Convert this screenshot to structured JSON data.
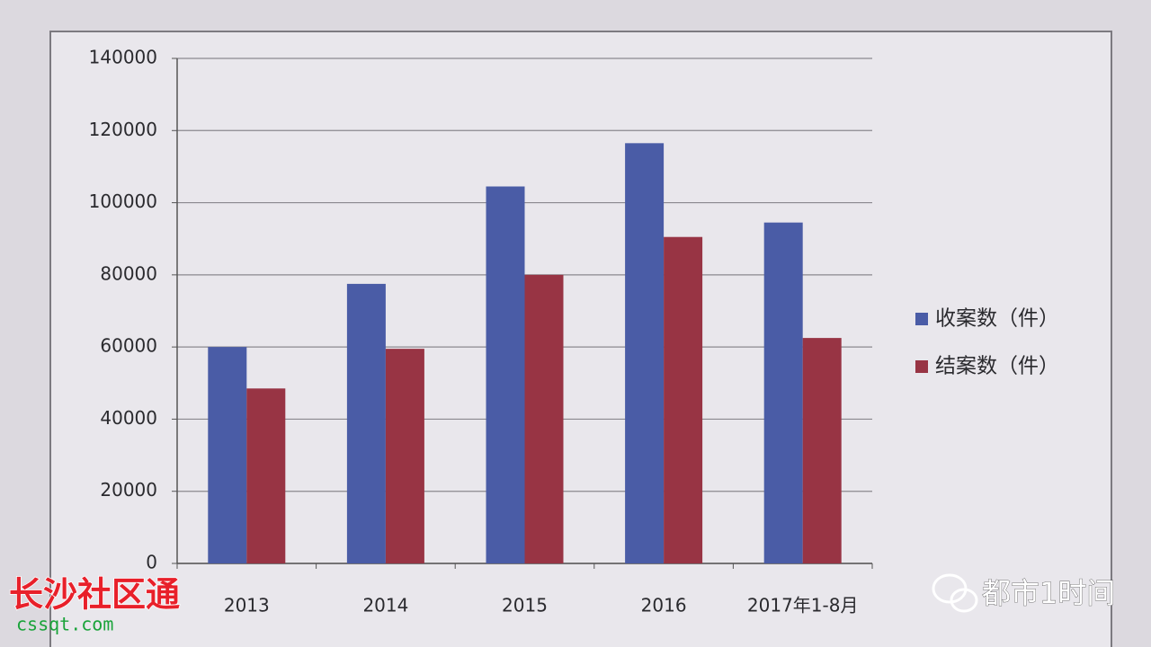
{
  "chart_data": {
    "type": "bar",
    "categories": [
      "2013",
      "2014",
      "2015",
      "2016",
      "2017年1-8月"
    ],
    "series": [
      {
        "name": "收案数（件）",
        "color": "#4a5ca6",
        "values": [
          60000,
          77500,
          104500,
          116500,
          94500
        ]
      },
      {
        "name": "结案数（件）",
        "color": "#983444",
        "values": [
          48500,
          59500,
          80000,
          90500,
          62500
        ]
      }
    ],
    "ylim": [
      0,
      140000
    ],
    "yticks": [
      0,
      20000,
      40000,
      60000,
      80000,
      100000,
      120000,
      140000
    ],
    "grid": true,
    "legend": "right"
  },
  "watermarks": {
    "left": "长沙社区通",
    "left_url": "cssqt.com",
    "right": "都市1时间"
  }
}
